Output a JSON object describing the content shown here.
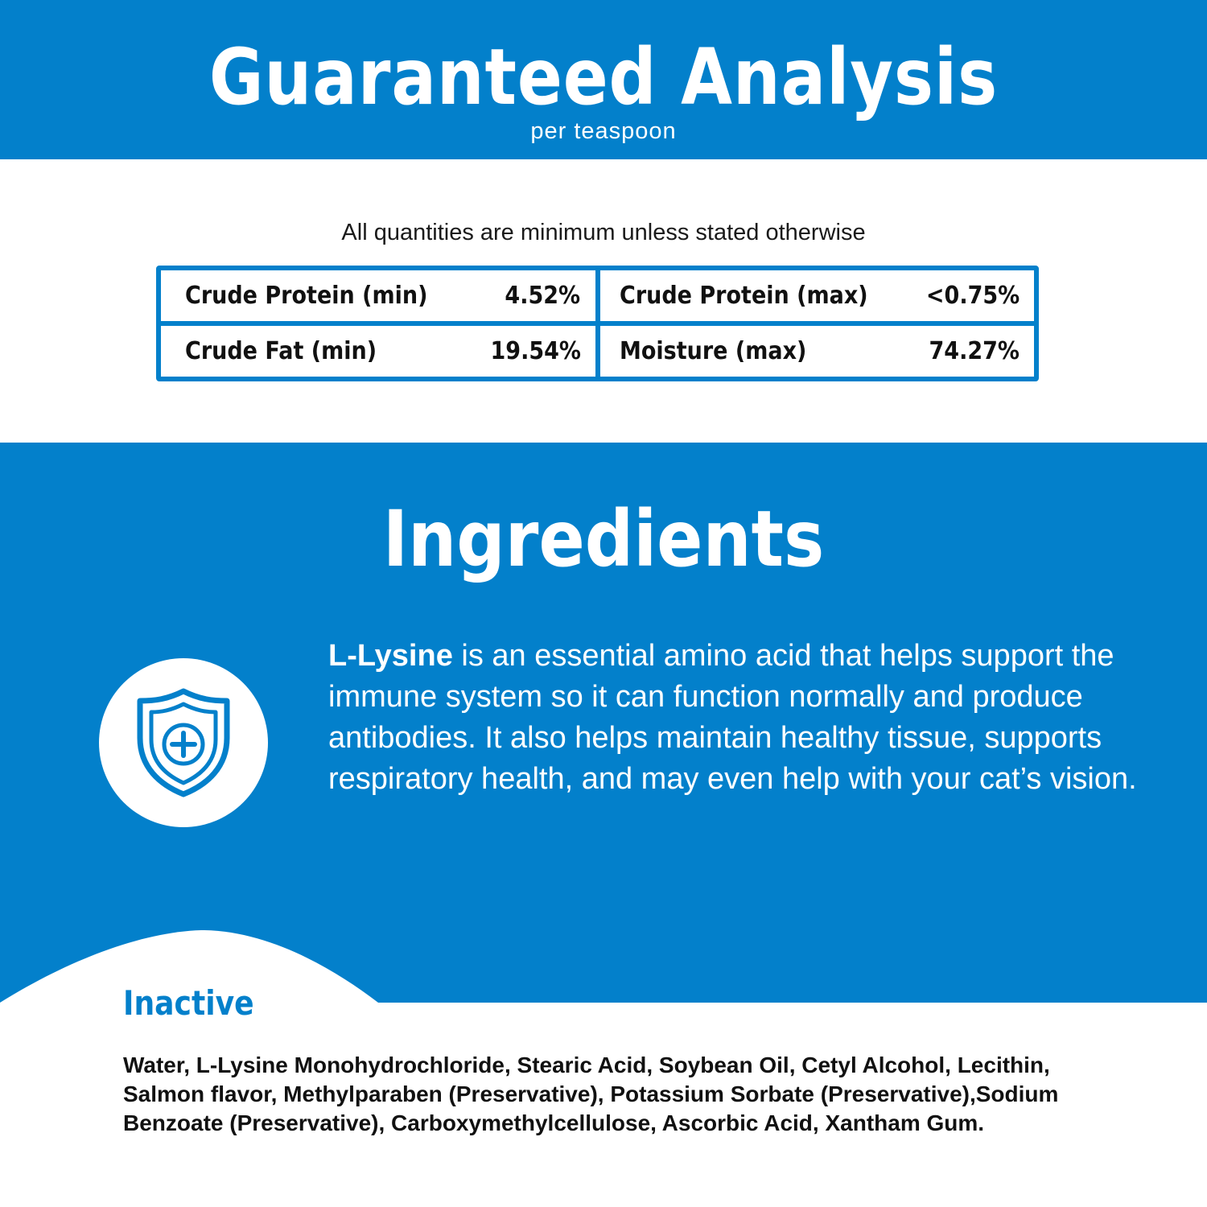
{
  "header": {
    "title": "Guaranteed Analysis",
    "subtitle": "per teaspoon"
  },
  "note": "All quantities are minimum unless stated otherwise",
  "analysis": [
    {
      "label": "Crude Protein (min)",
      "value": "4.52%"
    },
    {
      "label": "Crude Protein (max)",
      "value": "<0.75%"
    },
    {
      "label": "Crude Fat (min)",
      "value": "19.54%"
    },
    {
      "label": "Moisture (max)",
      "value": "74.27%"
    }
  ],
  "ingredients": {
    "title": "Ingredients",
    "icon": "shield-plus-icon",
    "lead": "L-Lysine",
    "description": " is an essential amino acid that helps support the immune system so it can function normally and produce antibodies. It also helps maintain healthy tissue, supports respiratory health, and may even help with your cat’s vision."
  },
  "inactive": {
    "title": "Inactive",
    "text": "Water, L-Lysine Monohydrochloride, Stearic Acid, Soybean Oil, Cetyl Alcohol, Lecithin, Salmon flavor, Methylparaben (Preservative), Potassium Sorbate (Preservative),Sodium Benzoate (Preservative), Carboxymethylcellulose, Ascorbic Acid, Xantham Gum."
  },
  "colors": {
    "brand_blue": "#0380cb",
    "text_dark": "#111111",
    "white": "#ffffff"
  }
}
